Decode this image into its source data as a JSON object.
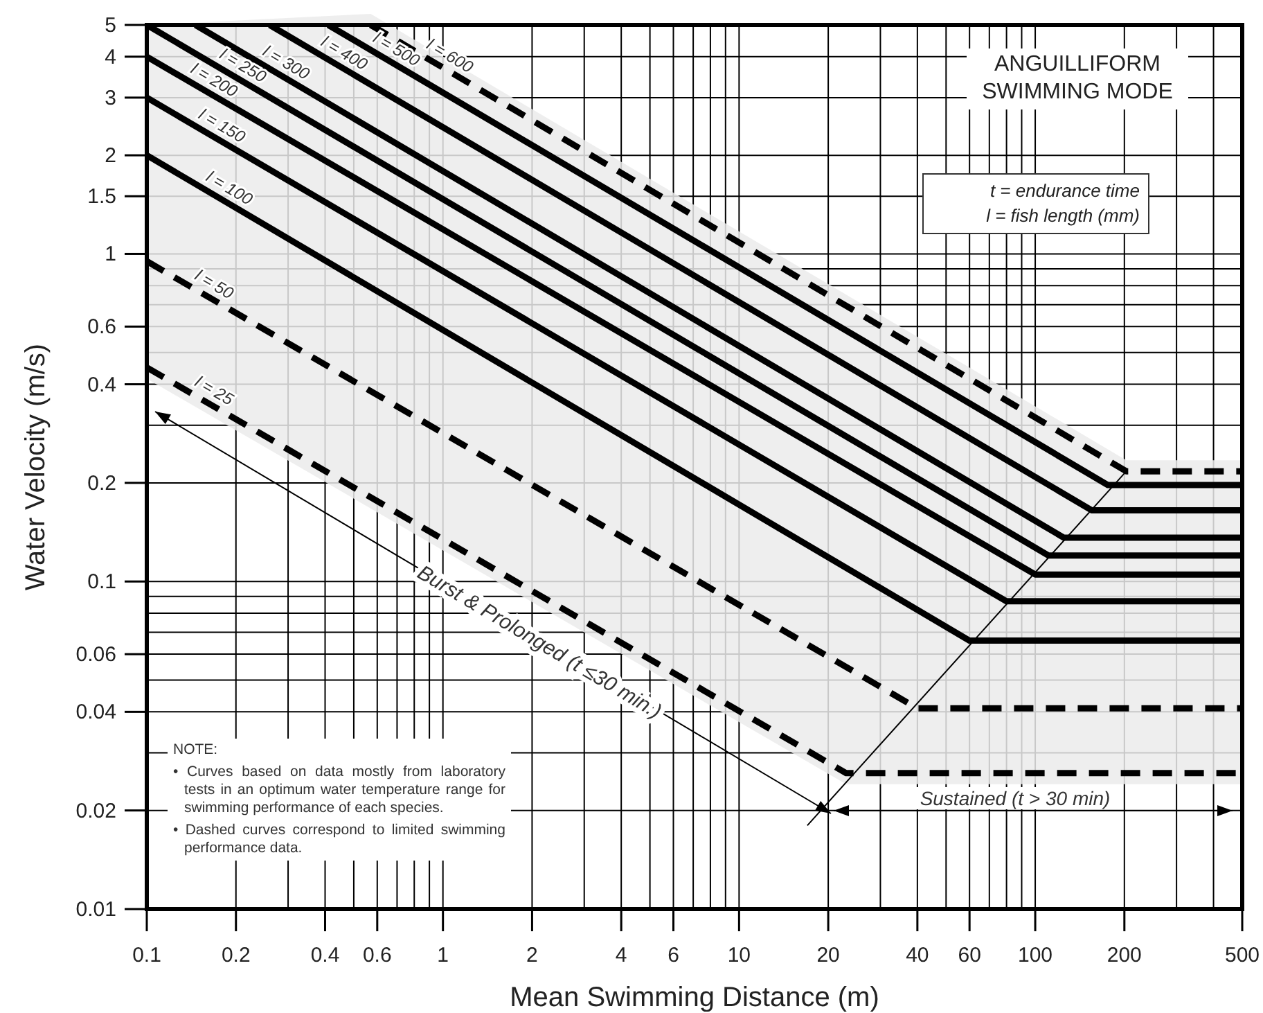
{
  "chart_data": {
    "type": "line",
    "title": "ANGUILLIFORM SWIMMING MODE",
    "xlabel": "Mean Swimming Distance (m)",
    "ylabel": "Water Velocity (m/s)",
    "log": "xy",
    "grid": true,
    "marker": "none",
    "xlim": [
      0.1,
      500
    ],
    "xticks": [
      0.1,
      0.2,
      {
        "value": 0.3,
        "label": null
      },
      0.4,
      {
        "value": 0.5,
        "label": null
      },
      0.6,
      {
        "value": 0.7,
        "label": null
      },
      {
        "value": 0.8,
        "label": null
      },
      {
        "value": 0.9,
        "label": null
      },
      1,
      2,
      {
        "value": 3,
        "label": null
      },
      4,
      {
        "value": 5,
        "label": null
      },
      6,
      {
        "value": 7,
        "label": null
      },
      {
        "value": 8,
        "label": null
      },
      {
        "value": 9,
        "label": null
      },
      10,
      20,
      {
        "value": 30,
        "label": null
      },
      40,
      {
        "value": 50,
        "label": null
      },
      60,
      {
        "value": 70,
        "label": null
      },
      {
        "value": 80,
        "label": null
      },
      {
        "value": 90,
        "label": null
      },
      100,
      200,
      {
        "value": 300,
        "label": null
      },
      {
        "value": 400,
        "label": null
      },
      500
    ],
    "ylim": [
      0.01,
      5
    ],
    "yticks": [
      0.01,
      0.02,
      {
        "value": 0.03,
        "label": null
      },
      0.04,
      {
        "value": 0.05,
        "label": null
      },
      0.06,
      {
        "value": 0.07,
        "label": null
      },
      {
        "value": 0.08,
        "label": null
      },
      {
        "value": 0.09,
        "label": null
      },
      0.1,
      0.2,
      {
        "value": 0.3,
        "label": null
      },
      0.4,
      {
        "value": 0.5,
        "label": null
      },
      0.6,
      {
        "value": 0.7,
        "label": null
      },
      {
        "value": 0.8,
        "label": null
      },
      {
        "value": 0.9,
        "label": null
      },
      1,
      1.5,
      2,
      3,
      4,
      5
    ],
    "series": [
      {
        "color": "#000000",
        "x": [
          17,
          203
        ],
        "values": [
          0.018,
          0.217
        ]
      },
      {
        "name": "l = 25",
        "color": "#000000",
        "line_style": "dashed",
        "x": [
          0.1,
          23,
          500
        ],
        "values": [
          0.45,
          0.026,
          0.026
        ]
      },
      {
        "name": "l = 50",
        "color": "#000000",
        "line_style": "dashed",
        "x": [
          0.1,
          40,
          500
        ],
        "values": [
          0.95,
          0.041,
          0.041
        ]
      },
      {
        "name": "l = 100",
        "color": "#000000",
        "line_style": "solid",
        "x": [
          0.1,
          60,
          500
        ],
        "values": [
          2,
          0.066,
          0.066
        ]
      },
      {
        "name": "l = 150",
        "color": "#000000",
        "line_style": "solid",
        "x": [
          0.1,
          80,
          500
        ],
        "values": [
          3,
          0.087,
          0.087
        ]
      },
      {
        "name": "l = 200",
        "color": "#000000",
        "line_style": "solid",
        "x": [
          0.1,
          100,
          500
        ],
        "values": [
          4,
          0.105,
          0.105
        ]
      },
      {
        "name": "l = 250",
        "color": "#000000",
        "line_style": "solid",
        "x": [
          0.1,
          111,
          500
        ],
        "values": [
          5,
          0.12,
          0.12
        ]
      },
      {
        "name": "l = 300",
        "color": "#000000",
        "line_style": "solid",
        "x": [
          0.146,
          125,
          500
        ],
        "values": [
          5,
          0.136,
          0.136
        ]
      },
      {
        "name": "l = 400",
        "color": "#000000",
        "line_style": "solid",
        "x": [
          0.26,
          155,
          500
        ],
        "values": [
          5,
          0.165,
          0.165
        ]
      },
      {
        "name": "l = 500",
        "color": "#000000",
        "line_style": "solid",
        "x": [
          0.41,
          176,
          500
        ],
        "values": [
          5,
          0.197,
          0.197
        ]
      },
      {
        "name": "l = 600",
        "color": "#000000",
        "line_style": "dashed",
        "x": [
          0.57,
          203,
          500
        ],
        "values": [
          5,
          0.217,
          0.217
        ]
      }
    ],
    "annotations": [
      "t = endurance time",
      "l = fish length (mm)",
      "Burst & Prolonged  (t ≤30 min.)",
      "Sustained   (t > 30 min)",
      "NOTE:",
      "• Curves based on data mostly from laboratory tests in an optimum water temperature range for swimming performance of each species.",
      "• Dashed curves correspond to limited swimming performance data."
    ]
  }
}
